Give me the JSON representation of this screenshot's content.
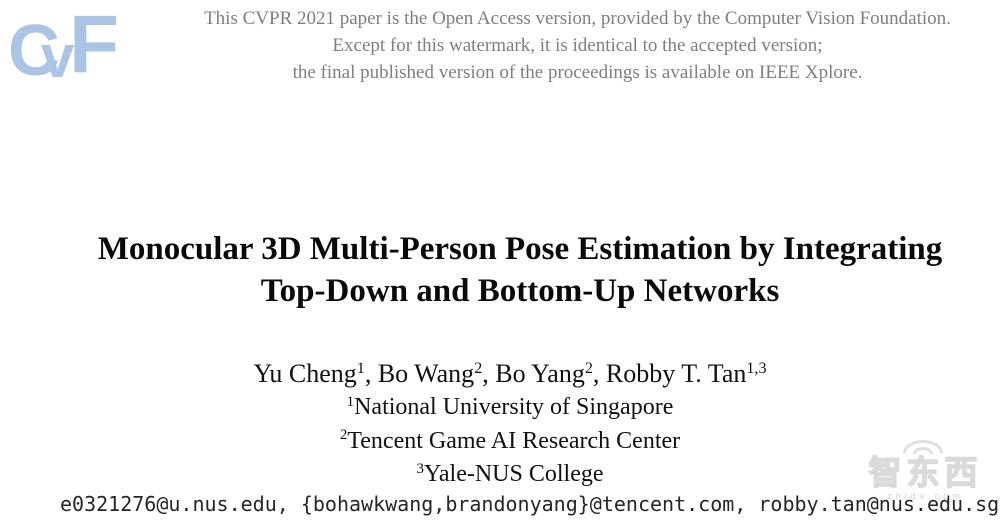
{
  "header": {
    "cvf_logo": {
      "c": "C",
      "v": "v",
      "f": "F"
    },
    "notice_lines": [
      "This CVPR 2021 paper is the Open Access version, provided by the Computer Vision Foundation.",
      "Except for this watermark, it is identical to the accepted version;",
      "the final published version of the proceedings is available on IEEE Xplore."
    ]
  },
  "paper": {
    "title_line1": "Monocular 3D Multi-Person Pose Estimation by Integrating",
    "title_line2": "Top-Down and Bottom-Up Networks",
    "authors": [
      {
        "name": "Yu Cheng",
        "sup": "1",
        "sep": ", "
      },
      {
        "name": "Bo Wang",
        "sup": "2",
        "sep": ", "
      },
      {
        "name": "Bo Yang",
        "sup": "2",
        "sep": ", "
      },
      {
        "name": "Robby T. Tan",
        "sup": "1,3",
        "sep": ""
      }
    ],
    "affiliations": [
      {
        "sup": "1",
        "name": "National University of Singapore"
      },
      {
        "sup": "2",
        "name": "Tencent Game AI Research Center"
      },
      {
        "sup": "3",
        "name": "Yale-NUS College"
      }
    ],
    "emails": "e0321276@u.nus.edu, {bohawkwang,brandonyang}@tencent.com, robby.tan@nus.edu.sg"
  },
  "site_watermark": {
    "logo_text": "智东西",
    "site": "zhidx.com"
  },
  "colors": {
    "cvf_blue": "#a9c4e4",
    "notice_gray": "#7f7f7f",
    "title_black": "#0a0a0a",
    "watermark_gray": "#dadada"
  }
}
